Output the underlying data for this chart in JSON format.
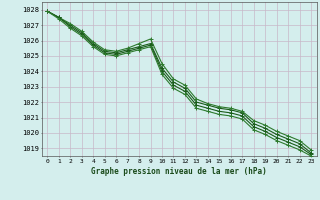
{
  "title": "Graphe pression niveau de la mer (hPa)",
  "background_color": "#d4eeed",
  "grid_color": "#c8b8c8",
  "line_color_dark": "#1a5c1a",
  "line_color_mid": "#2d7a2d",
  "xlim": [
    -0.5,
    23.5
  ],
  "ylim": [
    1018.5,
    1028.5
  ],
  "yticks": [
    1019,
    1020,
    1021,
    1022,
    1023,
    1024,
    1025,
    1026,
    1027,
    1028
  ],
  "xticks": [
    0,
    1,
    2,
    3,
    4,
    5,
    6,
    7,
    8,
    9,
    10,
    11,
    12,
    13,
    14,
    15,
    16,
    17,
    18,
    19,
    20,
    21,
    22,
    23
  ],
  "series1_x": [
    0,
    1,
    2,
    3,
    4,
    5,
    6,
    7,
    8,
    9,
    10,
    11,
    12,
    13,
    14,
    15,
    16,
    17,
    18,
    19,
    20,
    21,
    22,
    23
  ],
  "series1_y": [
    1027.9,
    1027.5,
    1027.0,
    1026.5,
    1025.8,
    1025.3,
    1025.2,
    1025.4,
    1025.6,
    1025.8,
    1024.2,
    1023.3,
    1022.9,
    1022.0,
    1021.8,
    1021.6,
    1021.5,
    1021.3,
    1020.6,
    1020.3,
    1019.9,
    1019.6,
    1019.3,
    1018.7
  ],
  "series2_x": [
    0,
    1,
    2,
    3,
    4,
    5,
    6,
    7,
    8,
    9,
    10,
    11,
    12,
    13,
    14,
    15,
    16,
    17,
    18,
    19,
    20,
    21,
    22,
    23
  ],
  "series2_y": [
    1027.9,
    1027.5,
    1027.1,
    1026.6,
    1025.9,
    1025.4,
    1025.3,
    1025.5,
    1025.8,
    1026.1,
    1024.5,
    1023.5,
    1023.1,
    1022.2,
    1021.9,
    1021.7,
    1021.6,
    1021.4,
    1020.8,
    1020.5,
    1020.1,
    1019.8,
    1019.5,
    1018.9
  ],
  "series3_x": [
    0,
    1,
    2,
    3,
    4,
    5,
    6,
    7,
    8,
    9,
    10,
    11,
    12,
    13,
    14,
    15,
    16,
    17,
    18,
    19,
    20,
    21,
    22,
    23
  ],
  "series3_y": [
    1027.9,
    1027.5,
    1026.9,
    1026.4,
    1025.7,
    1025.2,
    1025.1,
    1025.3,
    1025.5,
    1025.7,
    1024.0,
    1023.1,
    1022.7,
    1021.8,
    1021.6,
    1021.4,
    1021.3,
    1021.1,
    1020.4,
    1020.1,
    1019.7,
    1019.4,
    1019.1,
    1018.6
  ],
  "series4_x": [
    0,
    1,
    2,
    3,
    4,
    5,
    6,
    7,
    8,
    9,
    10,
    11,
    12,
    13,
    14,
    15,
    16,
    17,
    18,
    19,
    20,
    21,
    22,
    23
  ],
  "series4_y": [
    1027.9,
    1027.4,
    1026.8,
    1026.3,
    1025.6,
    1025.1,
    1025.0,
    1025.2,
    1025.4,
    1025.6,
    1023.8,
    1022.9,
    1022.5,
    1021.6,
    1021.4,
    1021.2,
    1021.1,
    1020.9,
    1020.2,
    1019.9,
    1019.5,
    1019.2,
    1018.9,
    1018.5
  ]
}
